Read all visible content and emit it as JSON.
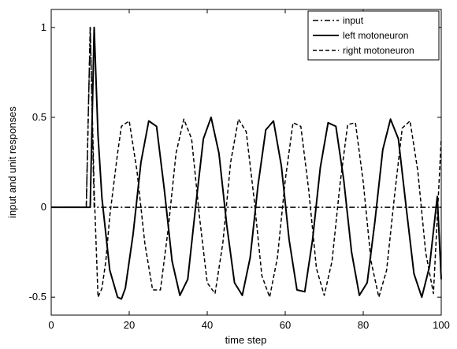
{
  "chart_data": {
    "type": "line",
    "xlabel": "time step",
    "ylabel": "input and unit responses",
    "xlim": [
      0,
      100
    ],
    "ylim": [
      -0.6,
      1.1
    ],
    "x_ticks": [
      0,
      20,
      40,
      60,
      80,
      100
    ],
    "y_ticks": [
      -0.5,
      0,
      0.5,
      1
    ],
    "x_tick_labels": [
      "0",
      "20",
      "40",
      "60",
      "80",
      "100"
    ],
    "y_tick_labels": [
      "-0.5",
      "0",
      "0.5",
      "1"
    ],
    "grid": false,
    "legend_position": "top-right",
    "series": [
      {
        "name": "input",
        "style": "dash-dot",
        "color": "#000000",
        "x": [
          0,
          9,
          9.5,
          10,
          10.5,
          11,
          100
        ],
        "y": [
          0,
          0,
          0.5,
          1,
          0.5,
          0,
          0
        ]
      },
      {
        "name": "left motoneuron",
        "style": "solid",
        "color": "#000000",
        "x": [
          0,
          10,
          11,
          12,
          13,
          15,
          17,
          18,
          19,
          21,
          23,
          25,
          27,
          29,
          31,
          33,
          35,
          37,
          39,
          41,
          43,
          45,
          47,
          49,
          51,
          53,
          55,
          57,
          59,
          61,
          63,
          65,
          67,
          69,
          71,
          73,
          75,
          77,
          79,
          81,
          83,
          85,
          87,
          89,
          91,
          93,
          95,
          97,
          99,
          100
        ],
        "y": [
          0,
          0,
          1.0,
          0.4,
          0.05,
          -0.35,
          -0.5,
          -0.51,
          -0.45,
          -0.15,
          0.25,
          0.48,
          0.45,
          0.1,
          -0.3,
          -0.49,
          -0.4,
          0.0,
          0.38,
          0.5,
          0.3,
          -0.1,
          -0.42,
          -0.49,
          -0.28,
          0.12,
          0.43,
          0.48,
          0.23,
          -0.18,
          -0.46,
          -0.47,
          -0.18,
          0.22,
          0.47,
          0.45,
          0.15,
          -0.25,
          -0.49,
          -0.42,
          -0.08,
          0.32,
          0.49,
          0.38,
          0.0,
          -0.37,
          -0.5,
          -0.33,
          0.06,
          -0.4
        ]
      },
      {
        "name": "right motoneuron",
        "style": "dashed",
        "color": "#000000",
        "x": [
          0,
          9,
          10,
          11,
          12,
          13,
          14,
          15,
          17,
          18,
          20,
          22,
          24,
          26,
          28,
          30,
          32,
          34,
          36,
          38,
          40,
          42,
          44,
          46,
          48,
          50,
          52,
          54,
          56,
          58,
          60,
          62,
          64,
          66,
          68,
          70,
          72,
          74,
          76,
          78,
          80,
          82,
          84,
          86,
          88,
          90,
          92,
          94,
          96,
          98,
          100
        ],
        "y": [
          0,
          0,
          1.0,
          0.1,
          -0.5,
          -0.45,
          -0.3,
          -0.05,
          0.3,
          0.45,
          0.48,
          0.2,
          -0.2,
          -0.46,
          -0.46,
          -0.12,
          0.3,
          0.49,
          0.38,
          -0.05,
          -0.42,
          -0.48,
          -0.2,
          0.25,
          0.49,
          0.42,
          0.05,
          -0.38,
          -0.5,
          -0.28,
          0.15,
          0.47,
          0.45,
          0.1,
          -0.34,
          -0.49,
          -0.3,
          0.12,
          0.46,
          0.47,
          0.14,
          -0.3,
          -0.5,
          -0.35,
          0.06,
          0.44,
          0.48,
          0.2,
          -0.25,
          -0.48,
          0.38
        ]
      }
    ]
  }
}
